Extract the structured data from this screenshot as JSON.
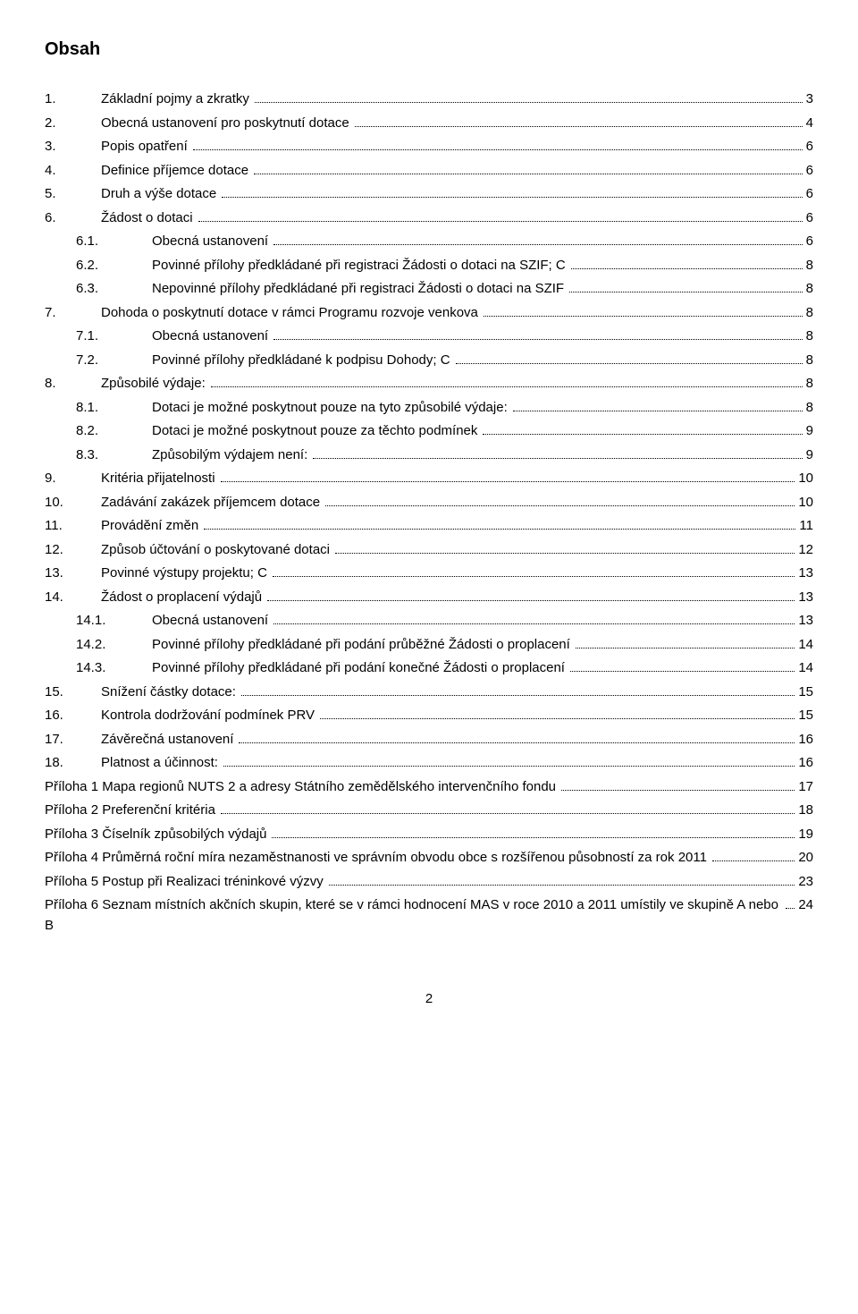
{
  "title": "Obsah",
  "entries": [
    {
      "num": "1.",
      "text": "Základní pojmy a zkratky",
      "page": "3",
      "level": 1
    },
    {
      "num": "2.",
      "text": "Obecná ustanovení pro poskytnutí dotace",
      "page": "4",
      "level": 1
    },
    {
      "num": "3.",
      "text": "Popis opatření",
      "page": "6",
      "level": 1
    },
    {
      "num": "4.",
      "text": "Definice příjemce dotace",
      "page": "6",
      "level": 1
    },
    {
      "num": "5.",
      "text": "Druh a výše dotace",
      "page": "6",
      "level": 1
    },
    {
      "num": "6.",
      "text": "Žádost o dotaci",
      "page": "6",
      "level": 1
    },
    {
      "num": "6.1.",
      "text": "Obecná ustanovení",
      "page": "6",
      "level": 2
    },
    {
      "num": "6.2.",
      "text": "Povinné přílohy předkládané při registraci Žádosti o dotaci na SZIF; C",
      "page": "8",
      "level": 2
    },
    {
      "num": "6.3.",
      "text": "Nepovinné přílohy předkládané při registraci Žádosti o dotaci na SZIF",
      "page": "8",
      "level": 2
    },
    {
      "num": "7.",
      "text": "Dohoda o poskytnutí dotace v rámci Programu rozvoje venkova",
      "page": "8",
      "level": 1
    },
    {
      "num": "7.1.",
      "text": "Obecná ustanovení",
      "page": "8",
      "level": 2
    },
    {
      "num": "7.2.",
      "text": "Povinné přílohy předkládané k podpisu Dohody; C",
      "page": "8",
      "level": 2
    },
    {
      "num": "8.",
      "text": "Způsobilé výdaje:",
      "page": "8",
      "level": 1
    },
    {
      "num": "8.1.",
      "text": "Dotaci je možné poskytnout pouze na tyto způsobilé výdaje:",
      "page": "8",
      "level": 2
    },
    {
      "num": "8.2.",
      "text": "Dotaci je možné poskytnout pouze za těchto podmínek",
      "page": "9",
      "level": 2
    },
    {
      "num": "8.3.",
      "text": "Způsobilým výdajem není:",
      "page": "9",
      "level": 2
    },
    {
      "num": "9.",
      "text": "Kritéria přijatelnosti",
      "page": "10",
      "level": 1
    },
    {
      "num": "10.",
      "text": "Zadávání zakázek příjemcem dotace",
      "page": "10",
      "level": 1
    },
    {
      "num": "11.",
      "text": "Provádění změn",
      "page": "11",
      "level": 1
    },
    {
      "num": "12.",
      "text": "Způsob účtování o poskytované dotaci",
      "page": "12",
      "level": 1
    },
    {
      "num": "13.",
      "text": "Povinné výstupy projektu; C",
      "page": "13",
      "level": 1
    },
    {
      "num": "14.",
      "text": "Žádost o proplacení výdajů",
      "page": "13",
      "level": 1
    },
    {
      "num": "14.1.",
      "text": "Obecná ustanovení",
      "page": "13",
      "level": 2
    },
    {
      "num": "14.2.",
      "text": "Povinné přílohy předkládané při podání průběžné Žádosti o proplacení",
      "page": "14",
      "level": 2
    },
    {
      "num": "14.3.",
      "text": "Povinné přílohy předkládané při podání konečné Žádosti o proplacení",
      "page": "14",
      "level": 2
    },
    {
      "num": "15.",
      "text": "Snížení částky dotace:",
      "page": "15",
      "level": 1
    },
    {
      "num": "16.",
      "text": "Kontrola dodržování podmínek PRV",
      "page": "15",
      "level": 1
    },
    {
      "num": "17.",
      "text": "Závěrečná ustanovení",
      "page": "16",
      "level": 1
    },
    {
      "num": "18.",
      "text": "Platnost a účinnost:",
      "page": "16",
      "level": 1
    }
  ],
  "attachments": [
    {
      "text": "Příloha 1 Mapa regionů NUTS 2 a adresy Státního zemědělského intervenčního fondu",
      "page": "17"
    },
    {
      "text": "Příloha 2 Preferenční kritéria",
      "page": "18"
    },
    {
      "text": "Příloha 3 Číselník způsobilých výdajů",
      "page": "19"
    },
    {
      "text": "Příloha 4 Průměrná roční míra nezaměstnanosti ve správním obvodu obce s rozšířenou působností za rok 2011",
      "page": "20"
    },
    {
      "text": "Příloha 5 Postup při Realizaci tréninkové výzvy",
      "page": "23"
    },
    {
      "text": "Příloha 6 Seznam místních akčních skupin, které se v rámci hodnocení MAS v roce 2010 a 2011 umístily ve skupině A nebo B",
      "page": "24"
    }
  ],
  "pageNumber": "2"
}
